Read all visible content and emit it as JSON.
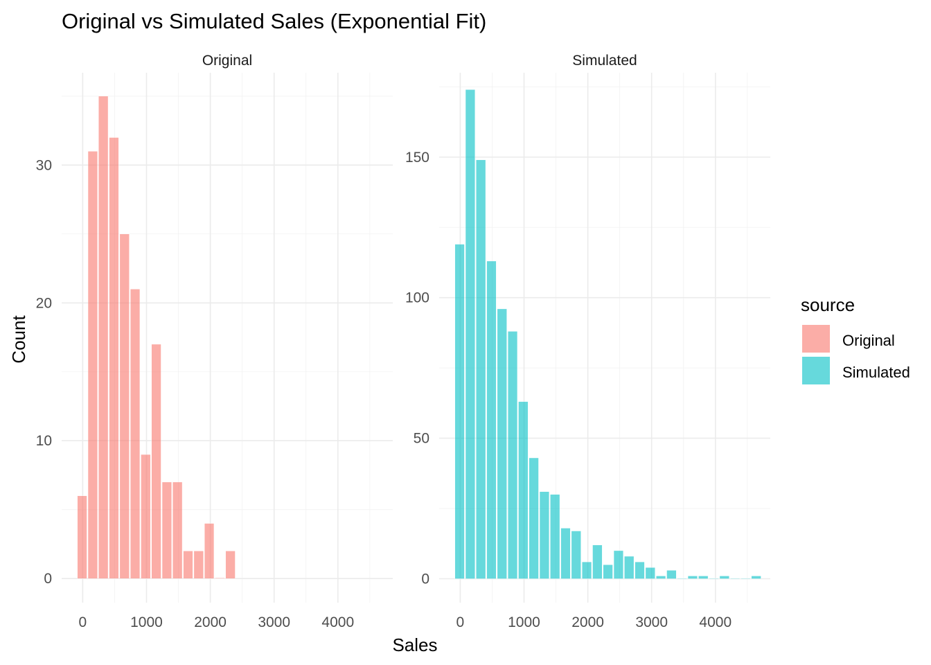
{
  "title": "Original vs Simulated Sales (Exponential Fit)",
  "xlabel": "Sales",
  "ylabel": "Count",
  "legend": {
    "title": "source",
    "items": [
      {
        "label": "Original",
        "color": "#F8766D"
      },
      {
        "label": "Simulated",
        "color": "#00BFC4"
      }
    ]
  },
  "chart_data": [
    {
      "type": "bar",
      "panel": "Original",
      "series_name": "Original",
      "color": "#F8766D",
      "bin_width": 166,
      "x": [
        0,
        166,
        332,
        498,
        664,
        830,
        996,
        1162,
        1328,
        1494,
        1660,
        1826,
        1992,
        2158,
        2324
      ],
      "values": [
        6,
        31,
        35,
        32,
        25,
        21,
        9,
        17,
        7,
        7,
        2,
        2,
        4,
        0,
        2
      ],
      "xlim": [
        -330,
        4860
      ],
      "ylim": [
        -1.75,
        36.7
      ],
      "x_ticks": [
        0,
        1000,
        2000,
        3000,
        4000
      ],
      "x_tick_labels": [
        "0",
        "1000",
        "2000",
        "3000",
        "4000"
      ],
      "y_ticks": [
        0,
        10,
        20,
        30
      ],
      "y_tick_labels": [
        "0",
        "10",
        "20",
        "30"
      ],
      "grid": true
    },
    {
      "type": "bar",
      "panel": "Simulated",
      "series_name": "Simulated",
      "color": "#00BFC4",
      "bin_width": 166,
      "x": [
        0,
        166,
        332,
        498,
        664,
        830,
        996,
        1162,
        1328,
        1494,
        1660,
        1826,
        1992,
        2158,
        2324,
        2490,
        2656,
        2822,
        2988,
        3154,
        3320,
        3486,
        3652,
        3818,
        3984,
        4150,
        4316,
        4482,
        4648
      ],
      "values": [
        119,
        174,
        149,
        113,
        96,
        88,
        63,
        43,
        31,
        30,
        18,
        17,
        6,
        12,
        5,
        10,
        8,
        6,
        4,
        1,
        3,
        0,
        1,
        1,
        0,
        1,
        0,
        0,
        1
      ],
      "xlim": [
        -330,
        4860
      ],
      "ylim": [
        -8.5,
        180
      ],
      "x_ticks": [
        0,
        1000,
        2000,
        3000,
        4000
      ],
      "x_tick_labels": [
        "0",
        "1000",
        "2000",
        "3000",
        "4000"
      ],
      "y_ticks": [
        0,
        50,
        100,
        150
      ],
      "y_tick_labels": [
        "0",
        "50",
        "100",
        "150"
      ],
      "grid": true
    }
  ]
}
